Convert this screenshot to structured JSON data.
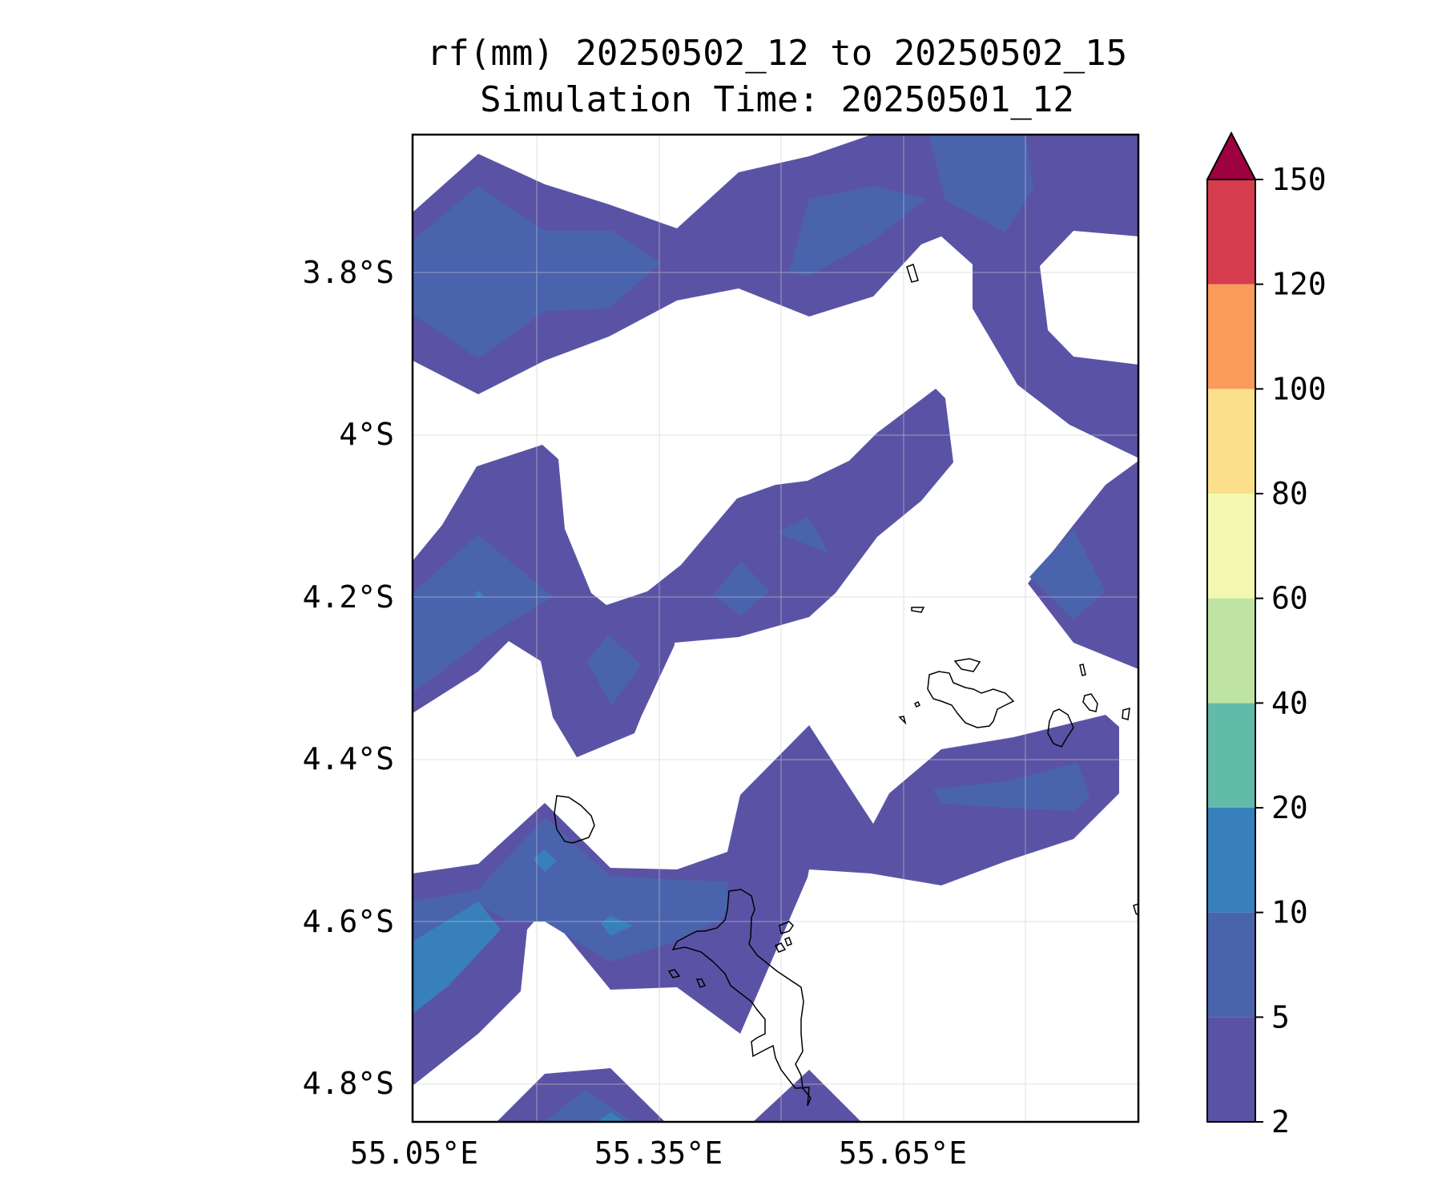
{
  "title": {
    "line1": "rf(mm) 20250502_12 to 20250502_15",
    "line2": "Simulation Time: 20250501_12"
  },
  "map": {
    "variable": "rf",
    "units": "mm",
    "lon_range": [
      55.05,
      55.95
    ],
    "lat_range": [
      -4.84,
      -3.63
    ],
    "lat_ticks": [
      "3.8°S",
      "4°S",
      "4.2°S",
      "4.4°S",
      "4.6°S",
      "4.8°S"
    ],
    "lon_ticks": [
      "55.05°E",
      "55.35°E",
      "55.65°E"
    ],
    "gridlines": true,
    "coastlines": true,
    "land_features": [
      "Mahé",
      "Praslin",
      "La Digue",
      "Silhouette",
      "Frégate"
    ]
  },
  "colorbar": {
    "levels": [
      2,
      5,
      10,
      20,
      40,
      60,
      80,
      100,
      120,
      150
    ],
    "labels": [
      "2",
      "5",
      "10",
      "20",
      "40",
      "60",
      "80",
      "100",
      "120",
      "150"
    ],
    "colors": [
      "#5a53a5",
      "#4a63ad",
      "#3780bb",
      "#62bba9",
      "#bfe4a1",
      "#f3f8b1",
      "#fcdf8a",
      "#f99b59",
      "#d53d4f",
      "#9e0142"
    ],
    "extend": "max",
    "position": "right"
  },
  "fill_colors": {
    "band_2_5": "#5a53a5",
    "band_5_10": "#4a63ad",
    "band_10_20": "#3780bb"
  }
}
